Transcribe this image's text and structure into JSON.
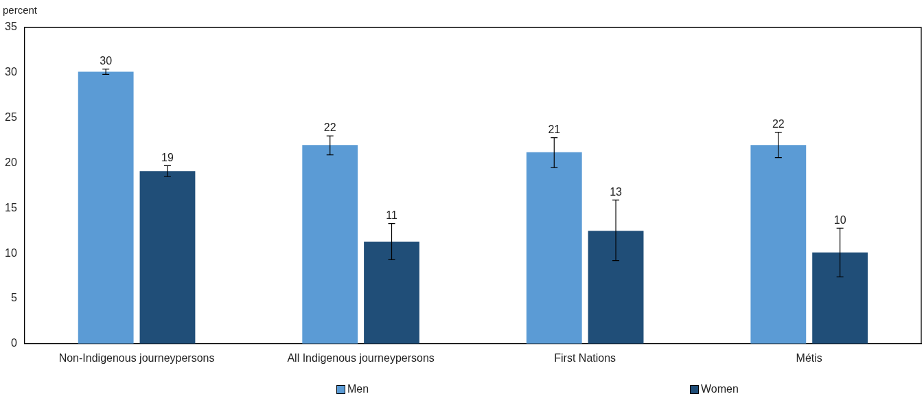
{
  "chart_data": {
    "type": "bar",
    "ylabel": "percent",
    "categories": [
      "Non-Indigenous journeypersons",
      "All Indigenous journeypersons",
      "First Nations",
      "Métis"
    ],
    "series": [
      {
        "name": "Men",
        "color": "#5b9bd5",
        "values": [
          30.1,
          22.0,
          21.2,
          22.0
        ],
        "errors": [
          [
            29.8,
            30.4
          ],
          [
            20.9,
            23.0
          ],
          [
            19.5,
            22.8
          ],
          [
            20.6,
            23.4
          ]
        ],
        "value_labels": [
          "30",
          "22",
          "21",
          "22"
        ]
      },
      {
        "name": "Women",
        "color": "#204e78",
        "values": [
          19.1,
          11.3,
          12.5,
          10.1
        ],
        "errors": [
          [
            18.5,
            19.7
          ],
          [
            9.3,
            13.3
          ],
          [
            9.2,
            15.9
          ],
          [
            7.4,
            12.8
          ]
        ],
        "value_labels": [
          "19",
          "11",
          "13",
          "10"
        ]
      }
    ],
    "ylim": [
      0,
      35
    ],
    "yticks": [
      0,
      5,
      10,
      15,
      20,
      25,
      30,
      35
    ],
    "grid": false,
    "legend": "bottom"
  }
}
